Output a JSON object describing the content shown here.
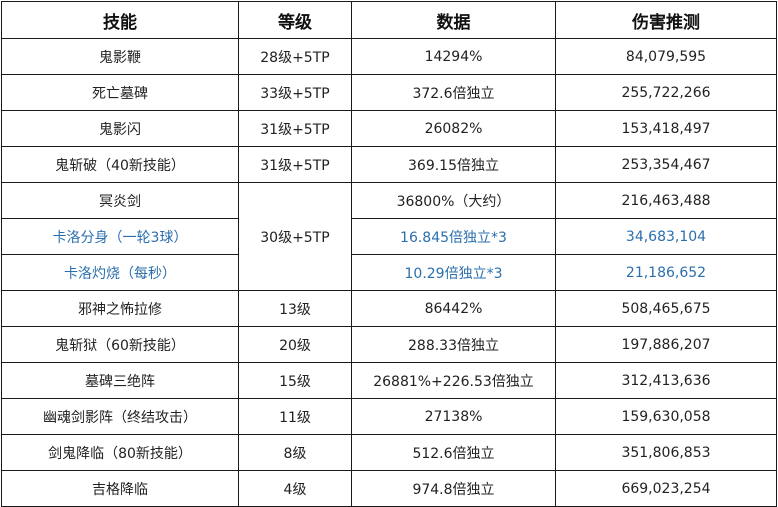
{
  "headers": [
    "技能",
    "等级",
    "数据",
    "伤害推测"
  ],
  "rows": [
    {
      "skill": "鬼影鞭",
      "level": "28级+5TP",
      "data": "14294%",
      "damage": "84,079,595"
    },
    {
      "skill": "死亡墓碑",
      "level": "33级+5TP",
      "data": "372.6倍独立",
      "damage": "255,722,266"
    },
    {
      "skill": "鬼影闪",
      "level": "31级+5TP",
      "data": "26082%",
      "damage": "153,418,497"
    },
    {
      "skill": "鬼斩破（40新技能）",
      "level": "31级+5TP",
      "data": "369.15倍独立",
      "damage": "253,354,467"
    },
    {
      "skill": "冥炎剑",
      "level": "30级+5TP",
      "data": "36800%（大约）",
      "damage": "216,463,488"
    },
    {
      "skill": "卡洛分身（一轮3球）",
      "level": "",
      "data": "16.845倍独立*3",
      "damage": "34,683,104"
    },
    {
      "skill": "卡洛灼烧（每秒）",
      "level": "",
      "data": "10.29倍独立*3",
      "damage": "21,186,652"
    },
    {
      "skill": "邪神之怖拉修",
      "level": "13级",
      "data": "86442%",
      "damage": "508,465,675"
    },
    {
      "skill": "鬼斩狱（60新技能）",
      "level": "20级",
      "data": "288.33倍独立",
      "damage": "197,886,207"
    },
    {
      "skill": "墓碑三绝阵",
      "level": "15级",
      "data": "26881%+226.53倍独立",
      "damage": "312,413,636"
    },
    {
      "skill": "幽魂剑影阵（终结攻击）",
      "level": "11级",
      "data": "27138%",
      "damage": "159,630,058"
    },
    {
      "skill": "剑鬼降临（80新技能）",
      "level": "8级",
      "data": "512.6倍独立",
      "damage": "351,806,853"
    },
    {
      "skill": "吉格降临",
      "level": "4级",
      "data": "974.8倍独立",
      "damage": "669,023,254"
    }
  ],
  "colors": {
    "highlight_text": "#2b6fad",
    "border": "#1a1a1a"
  }
}
